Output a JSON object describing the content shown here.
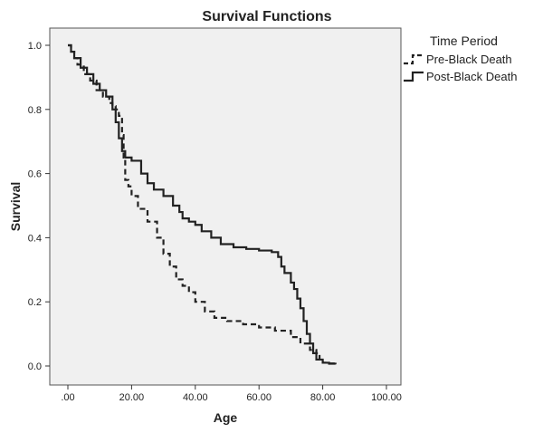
{
  "chart_data": {
    "type": "line",
    "title": "Survival Functions",
    "xlabel": "Age",
    "ylabel": "Survival",
    "xlim": [
      0,
      100
    ],
    "ylim": [
      0,
      1.0
    ],
    "x_ticks": [
      0,
      20,
      40,
      60,
      80,
      100
    ],
    "x_tick_labels": [
      ".00",
      "20.00",
      "40.00",
      "60.00",
      "80.00",
      "100.00"
    ],
    "y_ticks": [
      0,
      0.2,
      0.4,
      0.6,
      0.8,
      1.0
    ],
    "y_tick_labels": [
      "0.0",
      "0.2",
      "0.4",
      "0.6",
      "0.8",
      "1.0"
    ],
    "grid": false,
    "plot_background": "#f0f0f0",
    "legend": {
      "title": "Time Period",
      "placement": "right"
    },
    "series": [
      {
        "name": "Pre-Black Death",
        "style": "dashed",
        "color": "#222222",
        "x": [
          0,
          1,
          2,
          3,
          5,
          7,
          9,
          11,
          13,
          14,
          15,
          16,
          17,
          17.5,
          18,
          19,
          20,
          22,
          25,
          28,
          30,
          32,
          34,
          36,
          38,
          40,
          43,
          46,
          50,
          55,
          60,
          65,
          70,
          73,
          76,
          78,
          79,
          80,
          82,
          84
        ],
        "y": [
          1.0,
          0.98,
          0.96,
          0.94,
          0.91,
          0.89,
          0.86,
          0.84,
          0.82,
          0.81,
          0.8,
          0.78,
          0.72,
          0.65,
          0.58,
          0.56,
          0.53,
          0.49,
          0.45,
          0.4,
          0.35,
          0.31,
          0.27,
          0.25,
          0.23,
          0.2,
          0.17,
          0.15,
          0.14,
          0.13,
          0.12,
          0.11,
          0.09,
          0.07,
          0.05,
          0.04,
          0.02,
          0.01,
          0.008,
          0.005
        ]
      },
      {
        "name": "Post-Black Death",
        "style": "solid",
        "color": "#222222",
        "x": [
          0,
          1,
          2,
          4,
          6,
          8,
          10,
          12,
          14,
          15,
          16,
          17,
          18,
          20,
          23,
          25,
          27,
          30,
          33,
          35,
          36,
          38,
          40,
          42,
          45,
          48,
          52,
          56,
          60,
          64,
          66,
          67,
          68,
          70,
          71,
          72,
          73,
          74,
          75,
          76,
          77,
          78,
          80,
          82,
          84
        ],
        "y": [
          1.0,
          0.98,
          0.96,
          0.93,
          0.91,
          0.88,
          0.86,
          0.84,
          0.8,
          0.76,
          0.71,
          0.67,
          0.65,
          0.64,
          0.6,
          0.57,
          0.55,
          0.53,
          0.5,
          0.48,
          0.46,
          0.45,
          0.44,
          0.42,
          0.4,
          0.38,
          0.37,
          0.365,
          0.36,
          0.355,
          0.34,
          0.31,
          0.29,
          0.26,
          0.24,
          0.21,
          0.18,
          0.14,
          0.1,
          0.07,
          0.04,
          0.02,
          0.01,
          0.007,
          0.005
        ]
      }
    ]
  }
}
